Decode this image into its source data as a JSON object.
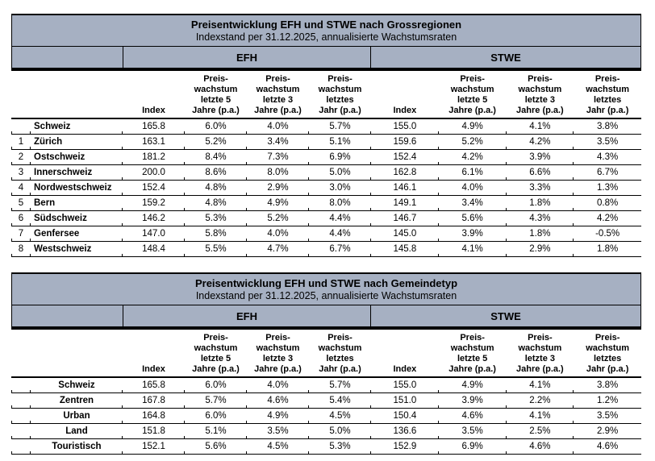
{
  "accent_color": "#a6b0c2",
  "border_color": "#000000",
  "tables": [
    {
      "title": "Preisentwicklung EFH und STWE nach Grossregionen",
      "subtitle": "Indexstand per 31.12.2025, annualisierte Wachstumsraten",
      "groups": [
        "EFH",
        "STWE"
      ],
      "col_headers": [
        "Index",
        "Preis-\nwachstum\nletzte 5\nJahre (p.a.)",
        "Preis-\nwachstum\nletzte 3\nJahre (p.a.)",
        "Preis-\nwachstum\nletztes\nJahr (p.a.)"
      ],
      "label_style": "numbered",
      "rows": [
        {
          "num": "",
          "name": "Schweiz",
          "efh": [
            "165.8",
            "6.0%",
            "4.0%",
            "5.7%"
          ],
          "stwe": [
            "155.0",
            "4.9%",
            "4.1%",
            "3.8%"
          ]
        },
        {
          "num": "1",
          "name": "Zürich",
          "efh": [
            "163.1",
            "5.2%",
            "3.4%",
            "5.1%"
          ],
          "stwe": [
            "159.6",
            "5.2%",
            "4.2%",
            "3.5%"
          ]
        },
        {
          "num": "2",
          "name": "Ostschweiz",
          "efh": [
            "181.2",
            "8.4%",
            "7.3%",
            "6.9%"
          ],
          "stwe": [
            "152.4",
            "4.2%",
            "3.9%",
            "4.3%"
          ]
        },
        {
          "num": "3",
          "name": "Innerschweiz",
          "efh": [
            "200.0",
            "8.6%",
            "8.0%",
            "5.0%"
          ],
          "stwe": [
            "162.8",
            "6.1%",
            "6.6%",
            "6.7%"
          ]
        },
        {
          "num": "4",
          "name": "Nordwestschweiz",
          "efh": [
            "152.4",
            "4.8%",
            "2.9%",
            "3.0%"
          ],
          "stwe": [
            "146.1",
            "4.0%",
            "3.3%",
            "1.3%"
          ]
        },
        {
          "num": "5",
          "name": "Bern",
          "efh": [
            "159.2",
            "4.8%",
            "4.9%",
            "8.0%"
          ],
          "stwe": [
            "149.1",
            "3.4%",
            "1.8%",
            "0.8%"
          ]
        },
        {
          "num": "6",
          "name": "Südschweiz",
          "efh": [
            "146.2",
            "5.3%",
            "5.2%",
            "4.4%"
          ],
          "stwe": [
            "146.7",
            "5.6%",
            "4.3%",
            "4.2%"
          ]
        },
        {
          "num": "7",
          "name": "Genfersee",
          "efh": [
            "147.0",
            "5.8%",
            "4.0%",
            "4.4%"
          ],
          "stwe": [
            "145.0",
            "3.9%",
            "1.8%",
            "-0.5%"
          ]
        },
        {
          "num": "8",
          "name": "Westschweiz",
          "efh": [
            "148.4",
            "5.5%",
            "4.7%",
            "6.7%"
          ],
          "stwe": [
            "145.8",
            "4.1%",
            "2.9%",
            "1.8%"
          ]
        }
      ]
    },
    {
      "title": "Preisentwicklung EFH und STWE nach Gemeindetyp",
      "subtitle": "Indexstand per 31.12.2025, annualisierte Wachstumsraten",
      "groups": [
        "EFH",
        "STWE"
      ],
      "col_headers": [
        "Index",
        "Preis-\nwachstum\nletzte 5\nJahre (p.a.)",
        "Preis-\nwachstum\nletzte 3\nJahre (p.a.)",
        "Preis-\nwachstum\nletztes\nJahr (p.a.)"
      ],
      "label_style": "centered",
      "rows": [
        {
          "num": "",
          "name": "Schweiz",
          "efh": [
            "165.8",
            "6.0%",
            "4.0%",
            "5.7%"
          ],
          "stwe": [
            "155.0",
            "4.9%",
            "4.1%",
            "3.8%"
          ]
        },
        {
          "num": "",
          "name": "Zentren",
          "efh": [
            "167.8",
            "5.7%",
            "4.6%",
            "5.4%"
          ],
          "stwe": [
            "151.0",
            "3.9%",
            "2.2%",
            "1.2%"
          ]
        },
        {
          "num": "",
          "name": "Urban",
          "efh": [
            "164.8",
            "6.0%",
            "4.9%",
            "4.5%"
          ],
          "stwe": [
            "150.4",
            "4.6%",
            "4.1%",
            "3.5%"
          ]
        },
        {
          "num": "",
          "name": "Land",
          "efh": [
            "151.8",
            "5.1%",
            "3.5%",
            "5.0%"
          ],
          "stwe": [
            "136.6",
            "3.5%",
            "2.5%",
            "2.9%"
          ]
        },
        {
          "num": "",
          "name": "Touristisch",
          "efh": [
            "152.1",
            "5.6%",
            "4.5%",
            "5.3%"
          ],
          "stwe": [
            "152.9",
            "6.9%",
            "4.6%",
            "4.6%"
          ]
        }
      ]
    }
  ]
}
